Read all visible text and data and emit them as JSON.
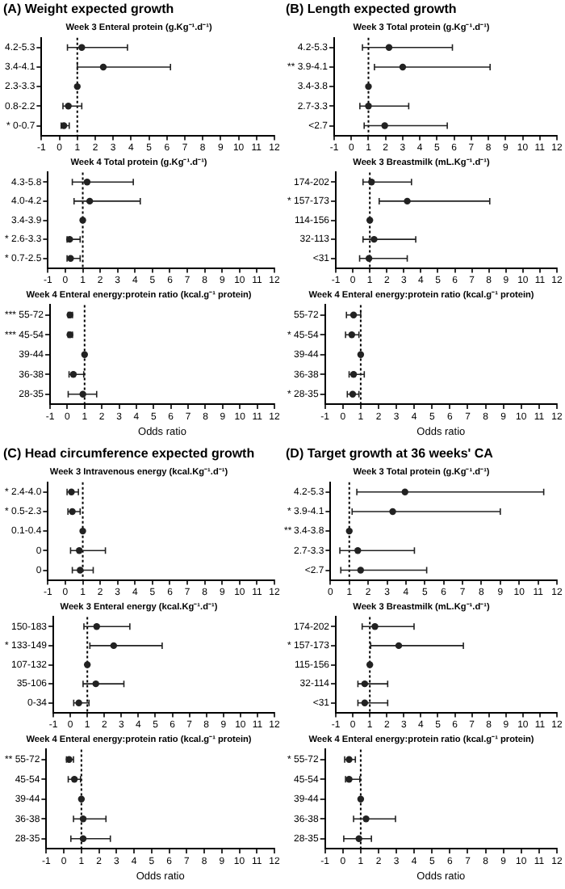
{
  "chart_data": [
    {
      "type": "scatter",
      "orientation": "horizontal",
      "title": "(A) Weight expected growth",
      "subtitle": "Week 3 Enteral protein (g.Kg⁻¹.d⁻¹)",
      "categories": [
        "4.2-5.3",
        "3.4-4.1",
        "2.3-3.3",
        "0.8-2.2",
        "* 0-0.7"
      ],
      "series": [
        {
          "color": "#222222",
          "values": [
            1.25,
            2.45,
            1,
            0.5,
            0.25
          ],
          "errors": [
            [
              0.45,
              3.8
            ],
            [
              1.0,
              6.2
            ],
            null,
            [
              0.2,
              1.25
            ],
            [
              0.1,
              0.55
            ]
          ]
        }
      ],
      "xlim": [
        -1,
        12
      ],
      "xticks": [
        -1,
        0,
        1,
        2,
        3,
        4,
        5,
        6,
        7,
        8,
        9,
        10,
        11,
        12
      ],
      "ref_lines": [
        {
          "axis": "x",
          "value": 1,
          "line_style": "dotted"
        }
      ],
      "marker": "circle"
    },
    {
      "type": "scatter",
      "orientation": "horizontal",
      "subtitle": "Week 4 Total protein (g.Kg⁻¹.d⁻¹)",
      "categories": [
        "4.3-5.8",
        "4.0-4.2",
        "3.4-3.9",
        "* 2.6-3.3",
        "* 0.7-2.5"
      ],
      "series": [
        {
          "color": "#222222",
          "values": [
            1.25,
            1.4,
            1,
            0.25,
            0.3
          ],
          "errors": [
            [
              0.4,
              3.9
            ],
            [
              0.5,
              4.3
            ],
            null,
            [
              0.1,
              0.85
            ],
            [
              0.1,
              0.85
            ]
          ]
        }
      ],
      "xlim": [
        -1,
        12
      ],
      "xticks": [
        -1,
        0,
        1,
        2,
        3,
        4,
        5,
        6,
        7,
        8,
        9,
        10,
        11,
        12
      ],
      "ref_lines": [
        {
          "axis": "x",
          "value": 1,
          "line_style": "dotted"
        }
      ],
      "marker": "circle"
    },
    {
      "type": "scatter",
      "orientation": "horizontal",
      "subtitle": "Week 4 Enteral energy:protein ratio (kcal.g⁻¹ protein)",
      "xlabel": "Odds ratio",
      "categories": [
        "*** 55-72",
        "*** 45-54",
        "39-44",
        "36-38",
        "28-35"
      ],
      "series": [
        {
          "color": "#222222",
          "values": [
            0.15,
            0.15,
            1,
            0.35,
            0.9
          ],
          "errors": [
            [
              0.05,
              0.3
            ],
            [
              0.05,
              0.3
            ],
            null,
            [
              0.1,
              0.95
            ],
            [
              0.05,
              1.7
            ]
          ]
        }
      ],
      "xlim": [
        -1,
        12
      ],
      "xticks": [
        -1,
        0,
        1,
        2,
        3,
        4,
        5,
        6,
        7,
        8,
        9,
        10,
        11,
        12
      ],
      "ref_lines": [
        {
          "axis": "x",
          "value": 1,
          "line_style": "dotted"
        }
      ],
      "marker": "circle"
    },
    {
      "type": "scatter",
      "orientation": "horizontal",
      "title": "(B) Length expected growth",
      "subtitle": "Week 3 Total protein (g.Kg⁻¹.d⁻¹)",
      "categories": [
        "4.2-5.3",
        "** 3.9-4.1",
        "3.4-3.8",
        "2.7-3.3",
        "<2.7"
      ],
      "series": [
        {
          "color": "#222222",
          "values": [
            2.2,
            3.0,
            1,
            1.0,
            1.95
          ],
          "errors": [
            [
              0.65,
              5.9
            ],
            [
              1.35,
              8.1
            ],
            null,
            [
              0.5,
              3.35
            ],
            [
              0.75,
              5.6
            ]
          ]
        }
      ],
      "xlim": [
        -1,
        12
      ],
      "xticks": [
        -1,
        0,
        1,
        2,
        3,
        4,
        5,
        6,
        7,
        8,
        9,
        10,
        11,
        12
      ],
      "ref_lines": [
        {
          "axis": "x",
          "value": 1,
          "line_style": "dotted"
        }
      ],
      "marker": "circle"
    },
    {
      "type": "scatter",
      "orientation": "horizontal",
      "subtitle": "Week 3 Breastmilk (mL.Kg⁻¹.d⁻¹)",
      "categories": [
        "174-202",
        "* 157-173",
        "114-156",
        "32-113",
        "<31"
      ],
      "series": [
        {
          "color": "#222222",
          "values": [
            1.1,
            3.2,
            1,
            1.25,
            0.95
          ],
          "errors": [
            [
              0.6,
              3.45
            ],
            [
              1.55,
              8.05
            ],
            null,
            [
              0.6,
              3.7
            ],
            [
              0.4,
              3.2
            ]
          ]
        }
      ],
      "xlim": [
        -1,
        12
      ],
      "xticks": [
        -1,
        0,
        1,
        2,
        3,
        4,
        5,
        6,
        7,
        8,
        9,
        10,
        11,
        12
      ],
      "ref_lines": [
        {
          "axis": "x",
          "value": 1,
          "line_style": "dotted"
        }
      ],
      "marker": "circle"
    },
    {
      "type": "scatter",
      "orientation": "horizontal",
      "subtitle": "Week 4 Enteral energy:protein ratio (kcal.g⁻¹ protein)",
      "xlabel": "Odds ratio",
      "categories": [
        "55-72",
        "* 45-54",
        "39-44",
        "36-38",
        "* 28-35"
      ],
      "series": [
        {
          "color": "#222222",
          "values": [
            0.6,
            0.5,
            1,
            0.6,
            0.55
          ],
          "errors": [
            [
              0.2,
              1.0
            ],
            [
              0.15,
              0.9
            ],
            null,
            [
              0.35,
              1.2
            ],
            [
              0.25,
              0.9
            ]
          ]
        }
      ],
      "xlim": [
        -1,
        12
      ],
      "xticks": [
        -1,
        0,
        1,
        2,
        3,
        4,
        5,
        6,
        7,
        8,
        9,
        10,
        11,
        12
      ],
      "ref_lines": [
        {
          "axis": "x",
          "value": 1,
          "line_style": "dotted"
        }
      ],
      "marker": "circle"
    },
    {
      "type": "scatter",
      "orientation": "horizontal",
      "title": "(C) Head circumference expected growth",
      "subtitle": "Week 3 Intravenous energy (kcal.Kg⁻¹.d⁻¹)",
      "categories": [
        "* 2.4-4.0",
        "* 0.5-2.3",
        "0.1-0.4",
        "0",
        "0"
      ],
      "series": [
        {
          "color": "#222222",
          "values": [
            0.35,
            0.4,
            1,
            0.8,
            0.85
          ],
          "errors": [
            [
              0.1,
              0.75
            ],
            [
              0.15,
              0.85
            ],
            null,
            [
              0.3,
              2.3
            ],
            [
              0.4,
              1.6
            ]
          ]
        }
      ],
      "xlim": [
        -1,
        12
      ],
      "xticks": [
        -1,
        0,
        1,
        2,
        3,
        4,
        5,
        6,
        7,
        8,
        9,
        10,
        11,
        12
      ],
      "ref_lines": [
        {
          "axis": "x",
          "value": 1,
          "line_style": "dotted"
        }
      ],
      "marker": "circle"
    },
    {
      "type": "scatter",
      "orientation": "horizontal",
      "subtitle": "Week 3 Enteral energy (kcal.Kg⁻¹.d⁻¹)",
      "categories": [
        "150-183",
        "* 133-149",
        "107-132",
        "35-106",
        "0-34"
      ],
      "series": [
        {
          "color": "#222222",
          "values": [
            1.55,
            2.55,
            1,
            1.5,
            0.5
          ],
          "errors": [
            [
              0.8,
              3.5
            ],
            [
              1.15,
              5.4
            ],
            null,
            [
              0.75,
              3.15
            ],
            [
              0.2,
              1.1
            ]
          ]
        }
      ],
      "xlim": [
        -1,
        12
      ],
      "xticks": [
        -1,
        0,
        1,
        2,
        3,
        4,
        5,
        6,
        7,
        8,
        9,
        10,
        11,
        12
      ],
      "ref_lines": [
        {
          "axis": "x",
          "value": 1,
          "line_style": "dotted"
        }
      ],
      "marker": "circle"
    },
    {
      "type": "scatter",
      "orientation": "horizontal",
      "subtitle": "Week 4 Enteral energy:protein ratio (kcal.g⁻¹ protein)",
      "xlabel": "Odds ratio",
      "categories": [
        "** 55-72",
        "45-54",
        "39-44",
        "36-38",
        "28-35"
      ],
      "series": [
        {
          "color": "#222222",
          "values": [
            0.3,
            0.6,
            1,
            1.1,
            1.1
          ],
          "errors": [
            [
              0.15,
              0.55
            ],
            [
              0.25,
              0.95
            ],
            null,
            [
              0.55,
              2.4
            ],
            [
              0.4,
              2.65
            ]
          ]
        }
      ],
      "xlim": [
        -1,
        12
      ],
      "xticks": [
        -1,
        0,
        1,
        2,
        3,
        4,
        5,
        6,
        7,
        8,
        9,
        10,
        11,
        12
      ],
      "ref_lines": [
        {
          "axis": "x",
          "value": 1,
          "line_style": "dotted"
        }
      ],
      "marker": "circle"
    },
    {
      "type": "scatter",
      "orientation": "horizontal",
      "title": "(D) Target growth at 36 weeks' CA",
      "subtitle": "Week 3 Total protein (g.Kg⁻¹.d⁻¹)",
      "categories": [
        "4.2-5.3",
        "* 3.9-4.1",
        "3.4-3.8",
        "2.7-3.3",
        "<2.7"
      ],
      "series": [
        {
          "color": "#222222",
          "values": [
            3.95,
            3.3,
            1,
            1.45,
            1.6
          ],
          "errors": [
            [
              1.4,
              11.3
            ],
            [
              1.15,
              9.0
            ],
            null,
            [
              0.5,
              4.45
            ],
            [
              0.55,
              5.1
            ]
          ]
        }
      ],
      "xlim": [
        0,
        12
      ],
      "xticks": [
        0,
        1,
        2,
        3,
        4,
        5,
        6,
        7,
        8,
        9,
        10,
        11,
        12
      ],
      "ref_lines": [
        {
          "axis": "x",
          "value": 1,
          "line_style": "dotted"
        }
      ],
      "annotations": [
        "**"
      ],
      "marker": "circle"
    },
    {
      "type": "scatter",
      "orientation": "horizontal",
      "subtitle": "Week 3 Breastmilk (mL.Kg⁻¹.d⁻¹)",
      "categories": [
        "174-202",
        "* 157-173",
        "115-156",
        "32-114",
        "<31"
      ],
      "series": [
        {
          "color": "#222222",
          "values": [
            1.3,
            2.7,
            1,
            0.7,
            0.7
          ],
          "errors": [
            [
              0.55,
              3.6
            ],
            [
              1.05,
              6.5
            ],
            null,
            [
              0.3,
              2.05
            ],
            [
              0.3,
              2.05
            ]
          ]
        }
      ],
      "xlim": [
        -1,
        12
      ],
      "xticks": [
        -1,
        0,
        1,
        2,
        3,
        4,
        5,
        6,
        7,
        8,
        9,
        10,
        11,
        12
      ],
      "ref_lines": [
        {
          "axis": "x",
          "value": 1,
          "line_style": "dotted"
        }
      ],
      "marker": "circle"
    },
    {
      "type": "scatter",
      "orientation": "horizontal",
      "subtitle": "Week 4 Enteral energy:protein ratio (kcal.g⁻¹ protein)",
      "xlabel": "Odds ratio",
      "categories": [
        "* 55-72",
        "45-54",
        "39-44",
        "36-38",
        "28-35"
      ],
      "series": [
        {
          "color": "#222222",
          "values": [
            0.35,
            0.35,
            1,
            1.3,
            0.9
          ],
          "errors": [
            [
              0.1,
              0.7
            ],
            [
              0.15,
              0.95
            ],
            null,
            [
              0.6,
              2.95
            ],
            [
              0.05,
              1.6
            ]
          ]
        }
      ],
      "xlim": [
        -1,
        12
      ],
      "xticks": [
        -1,
        0,
        1,
        2,
        3,
        4,
        5,
        6,
        7,
        8,
        9,
        10,
        11,
        12
      ],
      "ref_lines": [
        {
          "axis": "x",
          "value": 1,
          "line_style": "dotted"
        }
      ],
      "marker": "circle"
    }
  ]
}
